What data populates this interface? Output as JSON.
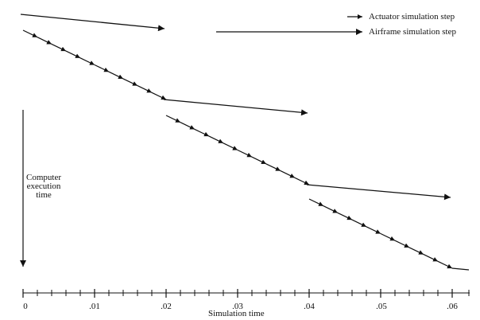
{
  "legend": {
    "actuator": "Actuator simulation step",
    "airframe": "Airframe simulation step"
  },
  "y_axis_label": {
    "line1": "Computer",
    "line2": "execution",
    "line3": "time"
  },
  "x_axis": {
    "label": "Simulation time",
    "ticks": [
      "0",
      ".01",
      ".02",
      ".03",
      ".04",
      ".05",
      ".06"
    ],
    "minor_ticks_per_interval": 4
  },
  "frames": [
    {
      "start": 0.0,
      "end": 0.02
    },
    {
      "start": 0.02,
      "end": 0.04
    },
    {
      "start": 0.04,
      "end": 0.06
    }
  ],
  "actuator_steps_per_frame": 10,
  "colors": {
    "ink": "#111111",
    "background": "#ffffff"
  }
}
